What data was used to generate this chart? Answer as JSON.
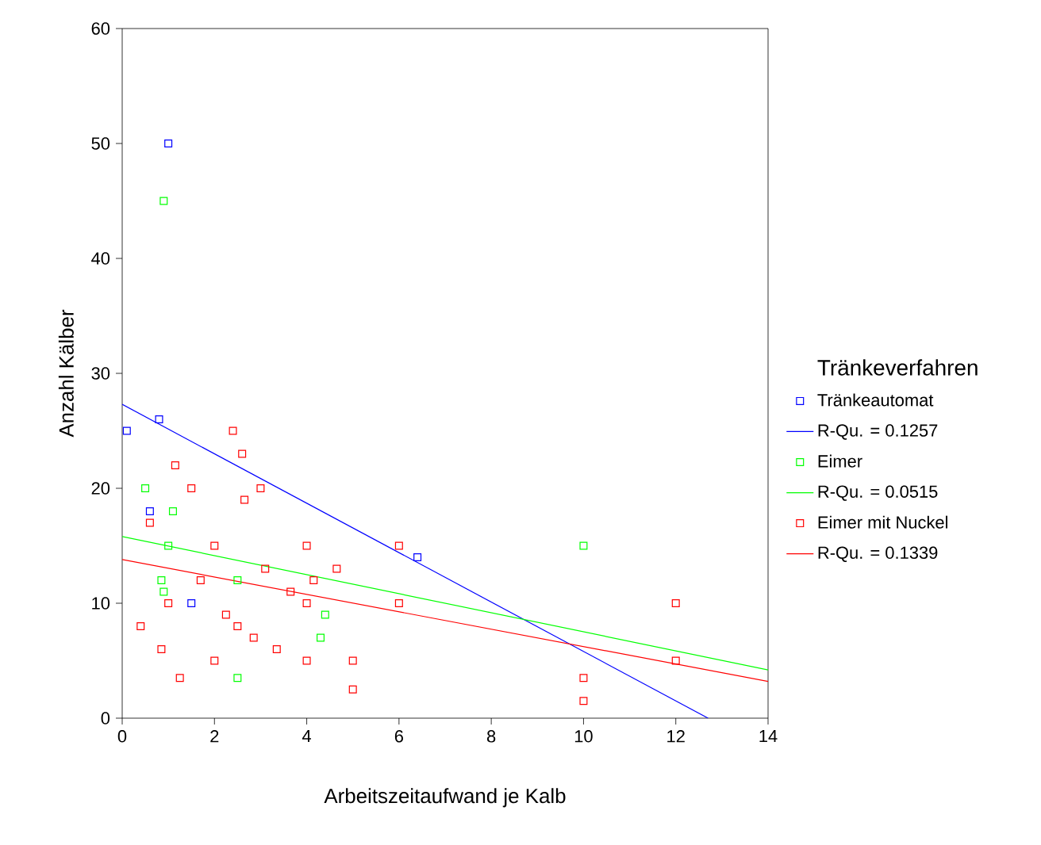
{
  "chart_data": {
    "type": "scatter",
    "xlabel": "Arbeitszeitaufwand je Kalb",
    "ylabel": "Anzahl Kälber",
    "legend_title": "Tränkeverfahren",
    "xlim": [
      0,
      14
    ],
    "ylim": [
      0,
      60
    ],
    "xticks": [
      0,
      2,
      4,
      6,
      8,
      10,
      12,
      14
    ],
    "yticks": [
      0,
      10,
      20,
      30,
      40,
      50,
      60
    ],
    "grid": false,
    "legend": "right",
    "series": [
      {
        "name": "Tränkeautomat",
        "marker": "square",
        "color": "#0000ff",
        "x": [
          1.0,
          0.1,
          0.8,
          0.6,
          1.5,
          6.4
        ],
        "values": [
          50,
          25,
          26,
          18,
          10,
          14
        ]
      },
      {
        "name": "R-Qu. = 0.1257",
        "type": "line",
        "marker": "none",
        "color": "#0000ff",
        "x": [
          0,
          12.7
        ],
        "values": [
          27.3,
          0
        ]
      },
      {
        "name": "Eimer",
        "marker": "square",
        "color": "#00ff00",
        "x": [
          0.9,
          0.5,
          1.1,
          1.0,
          0.85,
          0.9,
          2.5,
          4.4,
          4.3,
          2.5,
          10
        ],
        "values": [
          45,
          20,
          18,
          15,
          12,
          11,
          12,
          9,
          7,
          3.5,
          15
        ]
      },
      {
        "name": "R-Qu. = 0.0515",
        "type": "line",
        "marker": "none",
        "color": "#00ff00",
        "x": [
          0,
          14
        ],
        "values": [
          15.8,
          4.2
        ]
      },
      {
        "name": "Eimer mit Nuckel",
        "marker": "square",
        "color": "#ff0000",
        "x": [
          2.4,
          2.6,
          1.15,
          1.5,
          3.0,
          2.65,
          0.6,
          2.0,
          4.0,
          6.0,
          3.1,
          4.65,
          1.7,
          4.15,
          3.65,
          1.0,
          4.0,
          6.0,
          2.25,
          0.4,
          2.5,
          2.85,
          0.85,
          3.35,
          2.0,
          4.0,
          5.0,
          1.25,
          5.0,
          10,
          10,
          12,
          12
        ],
        "values": [
          25,
          23,
          22,
          20,
          20,
          19,
          17,
          15,
          15,
          15,
          13,
          13,
          12,
          12,
          11,
          10,
          10,
          10,
          9,
          8,
          8,
          7,
          6,
          6,
          5,
          5,
          5,
          3.5,
          2.5,
          3.5,
          1.5,
          10,
          5
        ]
      },
      {
        "name": "R-Qu. = 0.1339",
        "type": "line",
        "marker": "none",
        "color": "#ff0000",
        "x": [
          0,
          14
        ],
        "values": [
          13.8,
          3.2
        ]
      }
    ]
  }
}
